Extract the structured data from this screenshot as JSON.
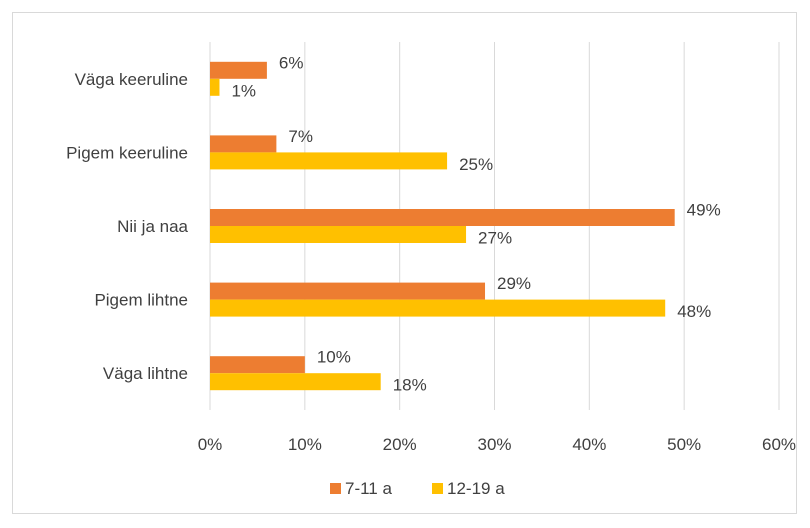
{
  "chart_data": {
    "type": "bar",
    "orientation": "horizontal",
    "categories": [
      "Väga keeruline",
      "Pigem keeruline",
      "Nii ja naa",
      "Pigem lihtne",
      "Väga lihtne"
    ],
    "series": [
      {
        "name": "7-11 a",
        "color": "#ED7D31",
        "values": [
          6,
          7,
          49,
          29,
          10
        ],
        "labels": [
          "6%",
          "7%",
          "49%",
          "29%",
          "10%"
        ]
      },
      {
        "name": "12-19 a",
        "color": "#FFC000",
        "values": [
          1,
          25,
          27,
          48,
          18
        ],
        "labels": [
          "1%",
          "25%",
          "27%",
          "48%",
          "18%"
        ]
      }
    ],
    "xlim": [
      0,
      60
    ],
    "xticks": [
      "0%",
      "10%",
      "20%",
      "30%",
      "40%",
      "50%",
      "60%"
    ],
    "grid": true,
    "legend_position": "bottom"
  }
}
